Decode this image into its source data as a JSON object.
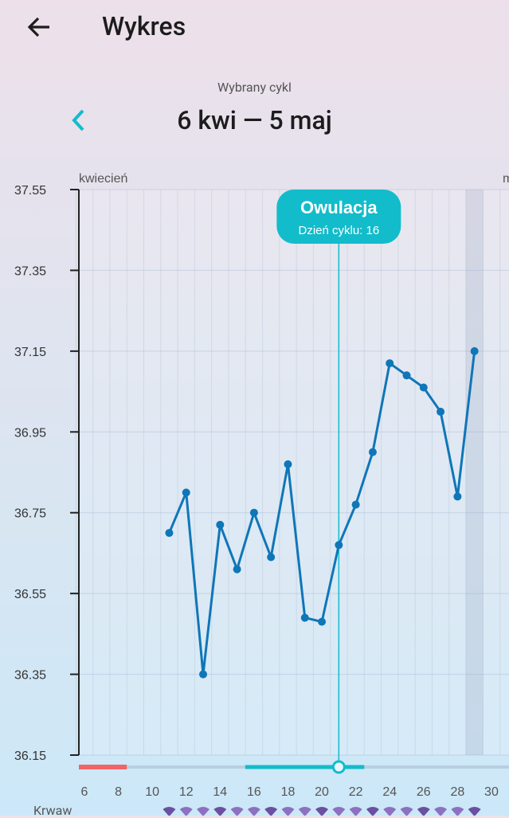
{
  "header": {
    "title": "Wykres",
    "back_icon": "arrow-left-icon"
  },
  "cycle": {
    "label": "Wybrany cykl",
    "range": "6 kwi — 5 maj",
    "prev_icon": "chevron-left-icon"
  },
  "colors": {
    "accent": "#12bccb",
    "line": "#0f76b8",
    "period": "#f06468"
  },
  "legend_row": {
    "label": "Krwaw"
  },
  "chart_data": {
    "type": "line",
    "month_labels": [
      "kwiecień",
      "m"
    ],
    "ylim": [
      36.15,
      37.55
    ],
    "yticks": [
      "37.55",
      "37.35",
      "37.15",
      "36.95",
      "36.75",
      "36.55",
      "36.35",
      "36.15"
    ],
    "xlim": [
      6,
      30
    ],
    "xticks": [
      "6",
      "8",
      "10",
      "12",
      "14",
      "16",
      "18",
      "20",
      "22",
      "24",
      "26",
      "28",
      "30"
    ],
    "x": [
      11,
      12,
      13,
      14,
      15,
      16,
      17,
      18,
      19,
      20,
      21,
      22,
      23,
      24,
      25,
      26,
      27,
      28,
      29
    ],
    "values": [
      36.7,
      36.8,
      36.35,
      36.72,
      36.61,
      36.75,
      36.64,
      36.87,
      36.49,
      36.48,
      36.67,
      36.77,
      36.9,
      37.12,
      37.09,
      37.06,
      37.0,
      36.79,
      37.15
    ],
    "highlighted_day": 29,
    "ovulation": {
      "day": 21,
      "title": "Owulacja",
      "subtitle": "Dzień cyklu: 16"
    },
    "period_days": [
      6,
      8.5
    ],
    "fertile_window": [
      16,
      22.5
    ],
    "bleeding_days": [
      11,
      12,
      13,
      14,
      15,
      16,
      17,
      18,
      19,
      20,
      21,
      22,
      23,
      24,
      25,
      26,
      27,
      28,
      29
    ]
  }
}
